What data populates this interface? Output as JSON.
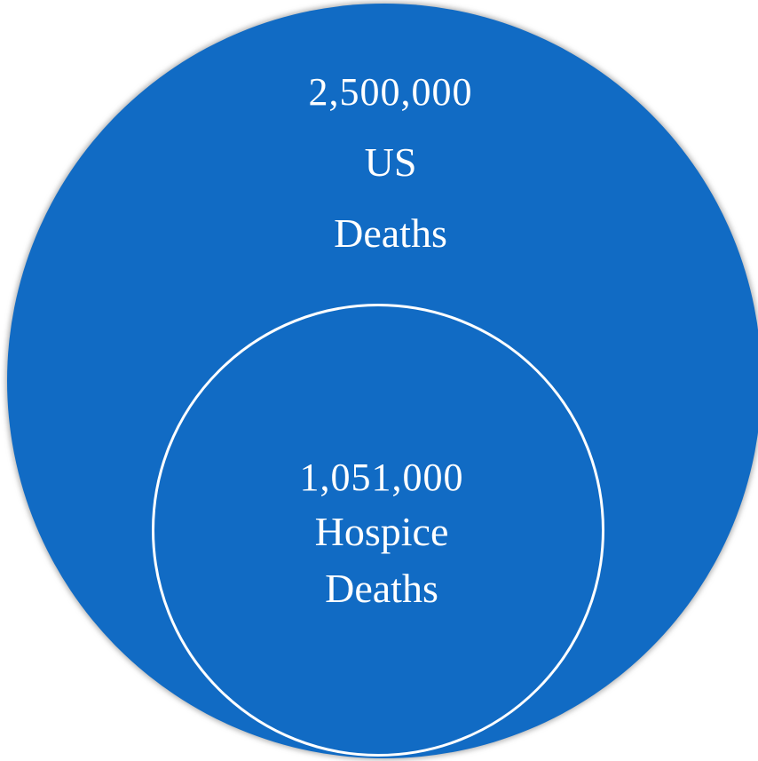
{
  "colors": {
    "circle_fill": "#116BC4",
    "outline": "#FFFFFF",
    "text": "#FFFFFF"
  },
  "outer": {
    "count": "2,500,000",
    "line1": "US",
    "line2": "Deaths"
  },
  "inner": {
    "count": "1,051,000",
    "line1": "Hospice",
    "line2": "Deaths"
  }
}
